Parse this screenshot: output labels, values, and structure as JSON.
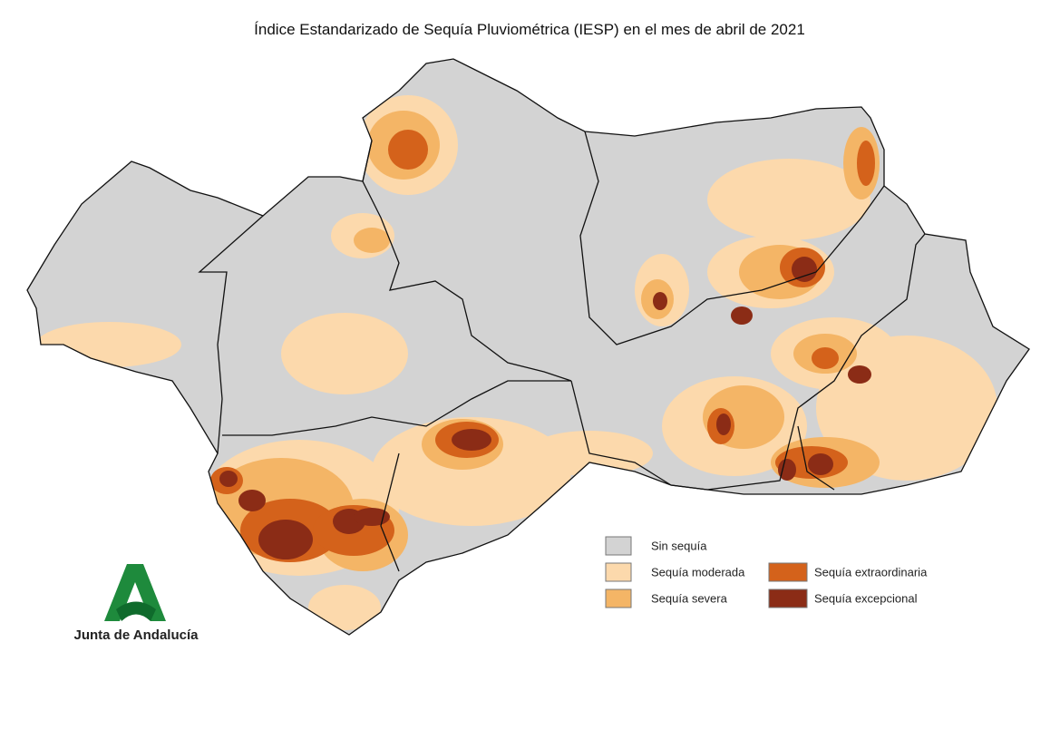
{
  "title": "Índice Estandarizado de Sequía Pluviométrica (IESP) en el mes de abril de 2021",
  "legend": [
    {
      "label": "Sin sequía",
      "color": "#d3d3d3"
    },
    {
      "label": "Sequía moderada",
      "color": "#fcd9ac"
    },
    {
      "label": "Sequía severa",
      "color": "#f4b566"
    },
    {
      "label": "Sequía extraordinaria",
      "color": "#d4621b"
    },
    {
      "label": "Sequía excepcional",
      "color": "#8b2c16"
    }
  ],
  "logo": {
    "text": "Junta de Andalucía"
  }
}
